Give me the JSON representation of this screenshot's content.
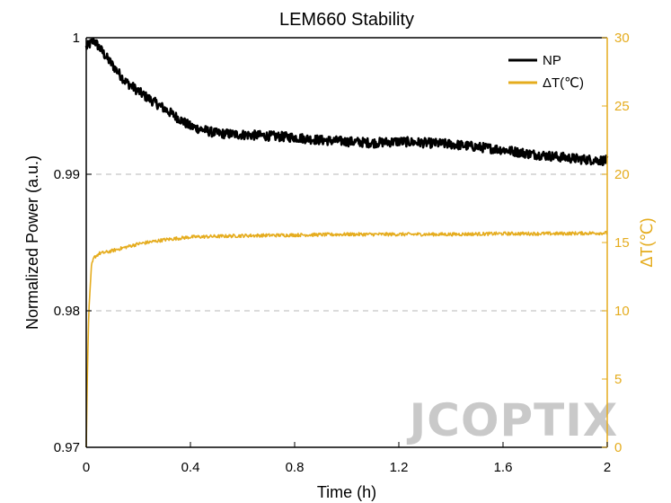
{
  "chart_data": {
    "type": "line",
    "title": "LEM660 Stability",
    "xlabel": "Time (h)",
    "ylabel_left": "Normalized Power (a.u.)",
    "ylabel_right": "ΔT(℃)",
    "xlim": [
      0,
      2
    ],
    "ylim_left": [
      0.97,
      1.0
    ],
    "ylim_right": [
      0,
      30
    ],
    "x_ticks": [
      0,
      0.4,
      0.8,
      1.2,
      1.6,
      2
    ],
    "x_tick_labels": [
      "0",
      "0.4",
      "0.8",
      "1.2",
      "1.6",
      "2"
    ],
    "y_left_ticks": [
      0.97,
      0.98,
      0.99,
      1.0
    ],
    "y_left_tick_labels": [
      "0.97",
      "0.98",
      "0.99",
      "1"
    ],
    "y_right_ticks": [
      0,
      5,
      10,
      15,
      20,
      25,
      30
    ],
    "y_right_tick_labels": [
      "0",
      "5",
      "10",
      "15",
      "20",
      "25",
      "30"
    ],
    "grid": "dashed horizontal at 0.98 and 0.99",
    "legend_position": "top-right",
    "series": [
      {
        "name": "NP",
        "axis": "left",
        "color": "#000000",
        "x": [
          0,
          0.03,
          0.08,
          0.15,
          0.22,
          0.3,
          0.4,
          0.5,
          0.6,
          0.7,
          0.8,
          0.9,
          1.0,
          1.1,
          1.2,
          1.3,
          1.4,
          1.5,
          1.6,
          1.7,
          1.8,
          1.9,
          2.0
        ],
        "values": [
          0.9993,
          0.9998,
          0.9985,
          0.9968,
          0.9958,
          0.9948,
          0.9935,
          0.993,
          0.9929,
          0.9928,
          0.9927,
          0.9925,
          0.9924,
          0.9923,
          0.9924,
          0.9923,
          0.9922,
          0.992,
          0.9918,
          0.9915,
          0.9913,
          0.9911,
          0.991
        ]
      },
      {
        "name": "ΔT(℃)",
        "axis": "right",
        "color": "#e5ac1e",
        "x": [
          0,
          0.005,
          0.01,
          0.02,
          0.03,
          0.05,
          0.08,
          0.1,
          0.2,
          0.3,
          0.4,
          0.5,
          0.6,
          0.8,
          1.0,
          1.2,
          1.4,
          1.6,
          1.8,
          2.0
        ],
        "values": [
          0,
          6,
          10,
          13.3,
          13.9,
          14.2,
          14.3,
          14.4,
          14.9,
          15.2,
          15.4,
          15.45,
          15.5,
          15.55,
          15.6,
          15.6,
          15.6,
          15.65,
          15.65,
          15.7
        ]
      }
    ]
  },
  "watermark": "JCOPTIX"
}
